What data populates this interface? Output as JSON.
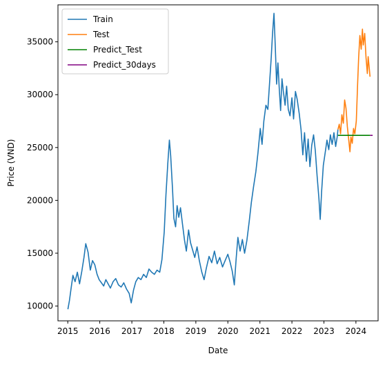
{
  "chart_data": {
    "type": "line",
    "title": "",
    "xlabel": "Date",
    "ylabel": "Price (VND)",
    "xlim": [
      "2014-09-11",
      "2024-09-10"
    ],
    "ylim": [
      8600,
      38500
    ],
    "x_ticks": [
      "2015",
      "2016",
      "2017",
      "2018",
      "2019",
      "2020",
      "2021",
      "2022",
      "2023",
      "2024"
    ],
    "y_ticks": [
      10000,
      15000,
      20000,
      25000,
      30000,
      35000
    ],
    "grid": false,
    "legend_position": "top-left",
    "series": [
      {
        "name": "Train",
        "color": "#1f77b4",
        "points": [
          [
            "2015-01-02",
            9700
          ],
          [
            "2015-01-20",
            10500
          ],
          [
            "2015-02-10",
            11800
          ],
          [
            "2015-03-01",
            12900
          ],
          [
            "2015-03-25",
            12300
          ],
          [
            "2015-04-20",
            13200
          ],
          [
            "2015-05-15",
            12100
          ],
          [
            "2015-06-10",
            13300
          ],
          [
            "2015-07-05",
            14600
          ],
          [
            "2015-07-25",
            15900
          ],
          [
            "2015-08-20",
            15100
          ],
          [
            "2015-09-15",
            13400
          ],
          [
            "2015-10-10",
            14300
          ],
          [
            "2015-11-05",
            13900
          ],
          [
            "2015-12-01",
            13000
          ],
          [
            "2015-12-25",
            12500
          ],
          [
            "2016-01-20",
            12200
          ],
          [
            "2016-02-15",
            11900
          ],
          [
            "2016-03-10",
            12500
          ],
          [
            "2016-04-05",
            12100
          ],
          [
            "2016-05-01",
            11700
          ],
          [
            "2016-06-01",
            12300
          ],
          [
            "2016-07-01",
            12600
          ],
          [
            "2016-08-01",
            12000
          ],
          [
            "2016-09-01",
            11800
          ],
          [
            "2016-10-01",
            12200
          ],
          [
            "2016-11-01",
            11600
          ],
          [
            "2016-12-01",
            11200
          ],
          [
            "2016-12-25",
            10300
          ],
          [
            "2017-01-20",
            11500
          ],
          [
            "2017-02-15",
            12300
          ],
          [
            "2017-03-15",
            12700
          ],
          [
            "2017-04-15",
            12500
          ],
          [
            "2017-05-15",
            13000
          ],
          [
            "2017-06-15",
            12700
          ],
          [
            "2017-07-15",
            13500
          ],
          [
            "2017-08-15",
            13200
          ],
          [
            "2017-09-15",
            13000
          ],
          [
            "2017-10-15",
            13400
          ],
          [
            "2017-11-15",
            13200
          ],
          [
            "2017-12-10",
            14400
          ],
          [
            "2018-01-05",
            17000
          ],
          [
            "2018-01-25",
            20500
          ],
          [
            "2018-02-15",
            23500
          ],
          [
            "2018-03-05",
            25700
          ],
          [
            "2018-03-20",
            24200
          ],
          [
            "2018-04-10",
            21000
          ],
          [
            "2018-04-25",
            18300
          ],
          [
            "2018-05-15",
            17500
          ],
          [
            "2018-06-01",
            19500
          ],
          [
            "2018-06-20",
            18400
          ],
          [
            "2018-07-10",
            19300
          ],
          [
            "2018-08-01",
            17800
          ],
          [
            "2018-08-25",
            16200
          ],
          [
            "2018-09-15",
            15200
          ],
          [
            "2018-10-10",
            17200
          ],
          [
            "2018-11-01",
            16000
          ],
          [
            "2018-11-25",
            15300
          ],
          [
            "2018-12-20",
            14600
          ],
          [
            "2019-01-15",
            15600
          ],
          [
            "2019-02-10",
            14300
          ],
          [
            "2019-03-10",
            13200
          ],
          [
            "2019-04-05",
            12500
          ],
          [
            "2019-05-01",
            13600
          ],
          [
            "2019-06-01",
            14700
          ],
          [
            "2019-07-01",
            14100
          ],
          [
            "2019-08-01",
            15200
          ],
          [
            "2019-09-01",
            14000
          ],
          [
            "2019-10-01",
            14600
          ],
          [
            "2019-11-01",
            13700
          ],
          [
            "2019-12-01",
            14300
          ],
          [
            "2020-01-01",
            14900
          ],
          [
            "2020-01-25",
            14200
          ],
          [
            "2020-02-20",
            13300
          ],
          [
            "2020-03-15",
            12000
          ],
          [
            "2020-04-05",
            14500
          ],
          [
            "2020-04-25",
            16500
          ],
          [
            "2020-05-20",
            15200
          ],
          [
            "2020-06-15",
            16300
          ],
          [
            "2020-07-10",
            15000
          ],
          [
            "2020-08-05",
            16200
          ],
          [
            "2020-09-01",
            18000
          ],
          [
            "2020-09-25",
            19800
          ],
          [
            "2020-10-20",
            21300
          ],
          [
            "2020-11-15",
            22700
          ],
          [
            "2020-12-10",
            24500
          ],
          [
            "2021-01-05",
            26800
          ],
          [
            "2021-01-25",
            25300
          ],
          [
            "2021-02-15",
            27500
          ],
          [
            "2021-03-10",
            29000
          ],
          [
            "2021-04-01",
            28600
          ],
          [
            "2021-04-20",
            31000
          ],
          [
            "2021-05-10",
            33500
          ],
          [
            "2021-05-25",
            35800
          ],
          [
            "2021-06-10",
            37700
          ],
          [
            "2021-06-25",
            34500
          ],
          [
            "2021-07-10",
            31000
          ],
          [
            "2021-07-25",
            33000
          ],
          [
            "2021-08-10",
            30500
          ],
          [
            "2021-08-25",
            28500
          ],
          [
            "2021-09-10",
            31500
          ],
          [
            "2021-09-25",
            30300
          ],
          [
            "2021-10-15",
            29000
          ],
          [
            "2021-11-01",
            30800
          ],
          [
            "2021-11-20",
            28600
          ],
          [
            "2021-12-10",
            28000
          ],
          [
            "2022-01-01",
            29700
          ],
          [
            "2022-01-20",
            27700
          ],
          [
            "2022-02-10",
            30300
          ],
          [
            "2022-03-01",
            29600
          ],
          [
            "2022-03-25",
            28200
          ],
          [
            "2022-04-15",
            26700
          ],
          [
            "2022-05-05",
            24300
          ],
          [
            "2022-05-25",
            26400
          ],
          [
            "2022-06-15",
            23700
          ],
          [
            "2022-07-05",
            25800
          ],
          [
            "2022-07-25",
            23200
          ],
          [
            "2022-08-15",
            25200
          ],
          [
            "2022-09-05",
            26200
          ],
          [
            "2022-09-25",
            24700
          ],
          [
            "2022-10-15",
            22300
          ],
          [
            "2022-11-05",
            20200
          ],
          [
            "2022-11-20",
            18200
          ],
          [
            "2022-12-05",
            20800
          ],
          [
            "2022-12-25",
            23300
          ],
          [
            "2023-01-15",
            24500
          ],
          [
            "2023-02-05",
            25700
          ],
          [
            "2023-02-25",
            24800
          ],
          [
            "2023-03-15",
            26200
          ],
          [
            "2023-04-05",
            25300
          ],
          [
            "2023-04-25",
            26400
          ],
          [
            "2023-05-15",
            25100
          ],
          [
            "2023-06-01",
            26000
          ],
          [
            "2023-06-10",
            26700
          ]
        ]
      },
      {
        "name": "Test",
        "color": "#ff7f0e",
        "points": [
          [
            "2023-06-10",
            26700
          ],
          [
            "2023-06-25",
            27200
          ],
          [
            "2023-07-10",
            26300
          ],
          [
            "2023-07-25",
            28100
          ],
          [
            "2023-08-10",
            27300
          ],
          [
            "2023-08-25",
            29500
          ],
          [
            "2023-09-10",
            28700
          ],
          [
            "2023-09-25",
            27000
          ],
          [
            "2023-10-10",
            25800
          ],
          [
            "2023-10-25",
            24600
          ],
          [
            "2023-11-05",
            26000
          ],
          [
            "2023-11-20",
            25400
          ],
          [
            "2023-12-05",
            26800
          ],
          [
            "2023-12-20",
            26300
          ],
          [
            "2024-01-05",
            27500
          ],
          [
            "2024-01-20",
            31000
          ],
          [
            "2024-02-01",
            33500
          ],
          [
            "2024-02-15",
            35600
          ],
          [
            "2024-03-01",
            34300
          ],
          [
            "2024-03-15",
            36200
          ],
          [
            "2024-03-25",
            34700
          ],
          [
            "2024-04-10",
            35800
          ],
          [
            "2024-04-25",
            33500
          ],
          [
            "2024-05-10",
            32000
          ],
          [
            "2024-05-20",
            33600
          ],
          [
            "2024-06-01",
            32500
          ],
          [
            "2024-06-10",
            31700
          ]
        ]
      },
      {
        "name": "Predict_Test",
        "color": "#008000",
        "points": [
          [
            "2023-06-10",
            26150
          ],
          [
            "2024-06-10",
            26150
          ]
        ]
      },
      {
        "name": "Predict_30days",
        "color": "#800080",
        "points": [
          [
            "2024-06-10",
            26150
          ],
          [
            "2024-07-10",
            26150
          ]
        ]
      }
    ]
  }
}
